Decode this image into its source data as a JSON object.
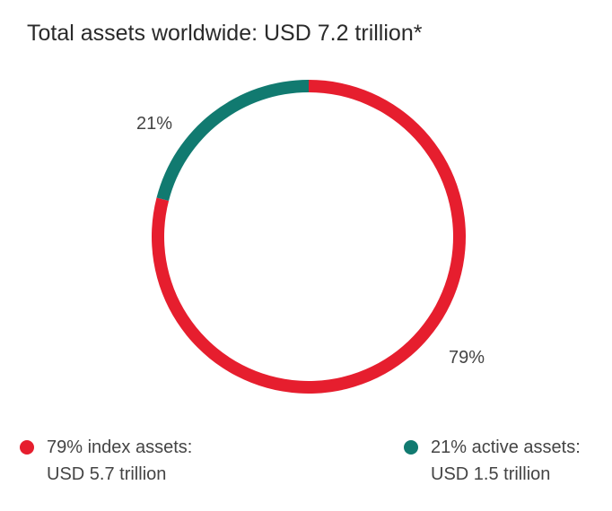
{
  "title": "Total assets worldwide: USD 7.2 trillion*",
  "chart_data": {
    "type": "pie",
    "style": "donut",
    "title": "Total assets worldwide: USD 7.2 trillion*",
    "slices": [
      {
        "label": "79%",
        "value": 79,
        "color": "#e61e2e"
      },
      {
        "label": "21%",
        "value": 21,
        "color": "#117a70"
      }
    ],
    "legend": [
      {
        "line1": "79% index assets:",
        "line2": "USD 5.7 trillion",
        "color": "#e61e2e"
      },
      {
        "line1": "21% active assets:",
        "line2": "USD 1.5 trillion",
        "color": "#117a70"
      }
    ],
    "legend_placement": "bottom"
  }
}
